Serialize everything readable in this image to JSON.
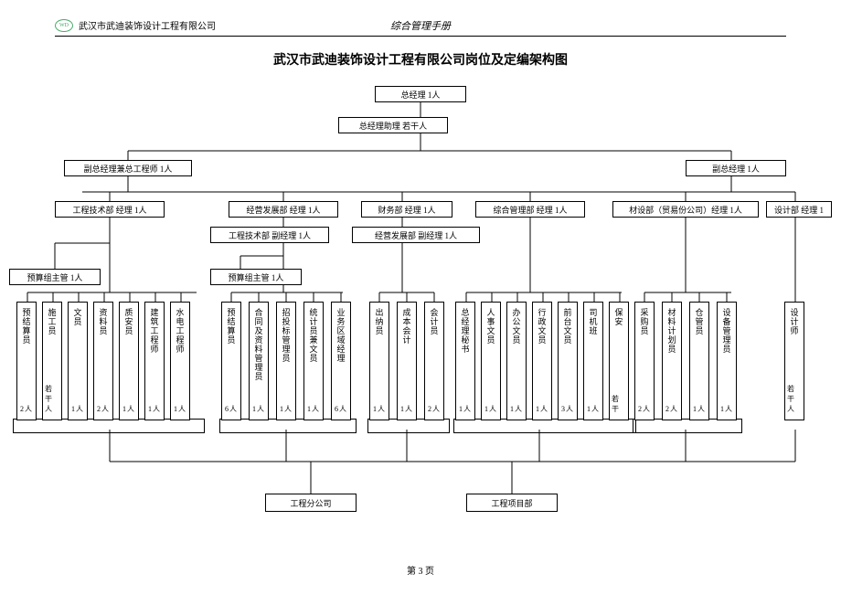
{
  "header": {
    "company": "武汉市武迪装饰设计工程有限公司",
    "manual": "综合管理手册",
    "logo": "WD"
  },
  "title": "武汉市武迪装饰设计工程有限公司岗位及定编架构图",
  "page": "第 3 页",
  "top": {
    "gm": "总经理   1人",
    "asst": "总经理助理   若干人",
    "vge": "副总经理兼总工程师  1人",
    "vgm": "副总经理   1人"
  },
  "depts": {
    "eng": "工程技术部  经理  1人",
    "engv": "工程技术部  副经理  1人",
    "biz": "经营发展部  经理  1人",
    "bizv": "经营发展部   副经理  1人",
    "fin": "财务部  经理  1人",
    "adm": "综合管理部  经理  1人",
    "mat": "材设部（贸易份公司）经理  1人",
    "des": "设计部  经理 1"
  },
  "sup": {
    "a": "预算组主管   1人",
    "b": "预算组主管   1人"
  },
  "bottom": {
    "a": "工程分公司",
    "b": "工程项目部"
  },
  "cols": {
    "g1": [
      {
        "r": "预结算员",
        "c": "2人"
      },
      {
        "r": "施工员",
        "c": "若干人"
      },
      {
        "r": "文员",
        "c": "1人"
      },
      {
        "r": "资料员",
        "c": "2人"
      },
      {
        "r": "质安员",
        "c": "1人"
      },
      {
        "r": "建筑工程师",
        "c": "1人"
      },
      {
        "r": "水电工程师",
        "c": "1人"
      }
    ],
    "g2": [
      {
        "r": "预结算员",
        "c": "6人"
      },
      {
        "r": "合同及资料管理员",
        "c": "1人"
      },
      {
        "r": "招投标管理员",
        "c": "1人"
      },
      {
        "r": "统计员兼文员",
        "c": "1人"
      },
      {
        "r": "业务区域经理",
        "c": "6人"
      }
    ],
    "g3": [
      {
        "r": "出纳员",
        "c": "1人"
      },
      {
        "r": "成本会计",
        "c": "1人"
      },
      {
        "r": "会计员",
        "c": "2人"
      }
    ],
    "g4": [
      {
        "r": "总经理秘书",
        "c": "1人"
      },
      {
        "r": "人事文员",
        "c": "1人"
      },
      {
        "r": "办公文员",
        "c": "1人"
      },
      {
        "r": "行政文员",
        "c": "1人"
      },
      {
        "r": "前台文员",
        "c": "3人"
      },
      {
        "r": "司机班",
        "c": "1人"
      },
      {
        "r": "保安",
        "c": "若干"
      }
    ],
    "g5": [
      {
        "r": "采购员",
        "c": "2人"
      },
      {
        "r": "材料计划员",
        "c": "2人"
      },
      {
        "r": "仓管员",
        "c": "1人"
      },
      {
        "r": "设备管理员",
        "c": "1人"
      }
    ],
    "g6": [
      {
        "r": "设计师",
        "c": "若干人"
      }
    ]
  },
  "style": {
    "box_border": "#000000",
    "bg": "#ffffff",
    "font": "SimSun",
    "title_size": 14,
    "box_font": 9
  }
}
